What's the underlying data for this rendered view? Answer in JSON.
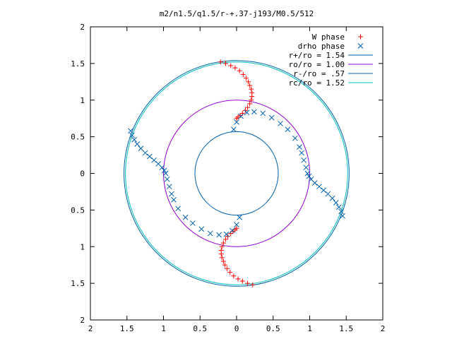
{
  "chart_data": {
    "type": "scatter",
    "title": "m2/n1.5/q1.5/r-+.37-j193/M0.5/512",
    "xlabel": "",
    "ylabel": "",
    "xlim": [
      -2,
      2
    ],
    "ylim": [
      -2,
      2
    ],
    "grid": false,
    "legend_position": "top-right",
    "x_ticks": [
      -2,
      -1.5,
      -1,
      -0.5,
      0,
      0.5,
      1,
      1.5,
      2
    ],
    "y_ticks": [
      -2,
      -1.5,
      -1,
      -0.5,
      0,
      0.5,
      1,
      1.5,
      2
    ],
    "x_tick_labels": [
      "2",
      "1.5",
      "1",
      "0.5",
      "0",
      "0.5",
      "1",
      "1.5",
      "2"
    ],
    "y_tick_labels": [
      "2",
      "1.5",
      "1",
      "0.5",
      "0",
      "0.5",
      "1",
      "1.5",
      "2"
    ],
    "series": [
      {
        "name": "W phase",
        "marker": "plus",
        "color": "#ff0000",
        "points": [
          [
            -0.22,
            1.52
          ],
          [
            -0.15,
            1.5
          ],
          [
            -0.08,
            1.47
          ],
          [
            -0.02,
            1.44
          ],
          [
            0.04,
            1.4
          ],
          [
            0.09,
            1.35
          ],
          [
            0.13,
            1.3
          ],
          [
            0.16,
            1.25
          ],
          [
            0.18,
            1.2
          ],
          [
            0.2,
            1.15
          ],
          [
            0.21,
            1.1
          ],
          [
            0.21,
            1.05
          ],
          [
            0.2,
            1.0
          ],
          [
            0.18,
            0.95
          ],
          [
            0.15,
            0.9
          ],
          [
            0.12,
            0.86
          ],
          [
            0.08,
            0.82
          ],
          [
            0.05,
            0.79
          ],
          [
            0.02,
            0.77
          ],
          [
            0.0,
            0.75
          ],
          [
            0.22,
            -1.52
          ],
          [
            0.15,
            -1.5
          ],
          [
            0.08,
            -1.47
          ],
          [
            0.02,
            -1.44
          ],
          [
            -0.04,
            -1.4
          ],
          [
            -0.09,
            -1.35
          ],
          [
            -0.13,
            -1.3
          ],
          [
            -0.16,
            -1.25
          ],
          [
            -0.18,
            -1.2
          ],
          [
            -0.2,
            -1.15
          ],
          [
            -0.21,
            -1.1
          ],
          [
            -0.21,
            -1.05
          ],
          [
            -0.2,
            -1.0
          ],
          [
            -0.18,
            -0.95
          ],
          [
            -0.15,
            -0.9
          ],
          [
            -0.12,
            -0.86
          ],
          [
            -0.08,
            -0.82
          ],
          [
            -0.05,
            -0.79
          ],
          [
            -0.02,
            -0.77
          ],
          [
            0.0,
            -0.75
          ]
        ]
      },
      {
        "name": "drho phase",
        "marker": "cross",
        "color": "#0060ad",
        "points": [
          [
            -1.45,
            0.58
          ],
          [
            -1.43,
            0.52
          ],
          [
            -1.4,
            0.46
          ],
          [
            -1.36,
            0.4
          ],
          [
            -1.31,
            0.34
          ],
          [
            -1.25,
            0.28
          ],
          [
            -1.19,
            0.23
          ],
          [
            -1.13,
            0.18
          ],
          [
            -1.07,
            0.13
          ],
          [
            -1.02,
            0.08
          ],
          [
            -0.99,
            0.04
          ],
          [
            -0.97,
            0.0
          ],
          [
            -0.95,
            -0.08
          ],
          [
            -0.92,
            -0.18
          ],
          [
            -0.89,
            -0.28
          ],
          [
            -0.86,
            -0.36
          ],
          [
            -0.8,
            -0.48
          ],
          [
            -0.7,
            -0.6
          ],
          [
            -0.6,
            -0.68
          ],
          [
            -0.48,
            -0.76
          ],
          [
            -0.36,
            -0.82
          ],
          [
            -0.24,
            -0.84
          ],
          [
            -0.14,
            -0.83
          ],
          [
            -0.06,
            -0.78
          ],
          [
            0.0,
            -0.7
          ],
          [
            0.04,
            -0.6
          ],
          [
            1.45,
            -0.58
          ],
          [
            1.43,
            -0.52
          ],
          [
            1.4,
            -0.46
          ],
          [
            1.36,
            -0.4
          ],
          [
            1.31,
            -0.34
          ],
          [
            1.25,
            -0.28
          ],
          [
            1.19,
            -0.23
          ],
          [
            1.13,
            -0.18
          ],
          [
            1.07,
            -0.13
          ],
          [
            1.02,
            -0.08
          ],
          [
            0.99,
            -0.04
          ],
          [
            0.97,
            0.0
          ],
          [
            0.95,
            0.08
          ],
          [
            0.92,
            0.18
          ],
          [
            0.89,
            0.28
          ],
          [
            0.86,
            0.36
          ],
          [
            0.8,
            0.48
          ],
          [
            0.7,
            0.6
          ],
          [
            0.6,
            0.68
          ],
          [
            0.48,
            0.76
          ],
          [
            0.36,
            0.82
          ],
          [
            0.24,
            0.84
          ],
          [
            0.14,
            0.83
          ],
          [
            0.06,
            0.78
          ],
          [
            0.0,
            0.7
          ],
          [
            -0.04,
            0.6
          ]
        ]
      },
      {
        "name": "r+/ro = 1.54",
        "line": "circle",
        "radius": 1.54,
        "color": "#0060ad"
      },
      {
        "name": "ro/ro = 1.00",
        "line": "circle",
        "radius": 1.0,
        "color": "#9400d3"
      },
      {
        "name": "r-/ro = .57",
        "line": "circle",
        "radius": 0.57,
        "color": "#0060ad"
      },
      {
        "name": "rc/ro = 1.52",
        "line": "circle",
        "radius": 1.52,
        "color": "#00c0c0"
      }
    ]
  }
}
